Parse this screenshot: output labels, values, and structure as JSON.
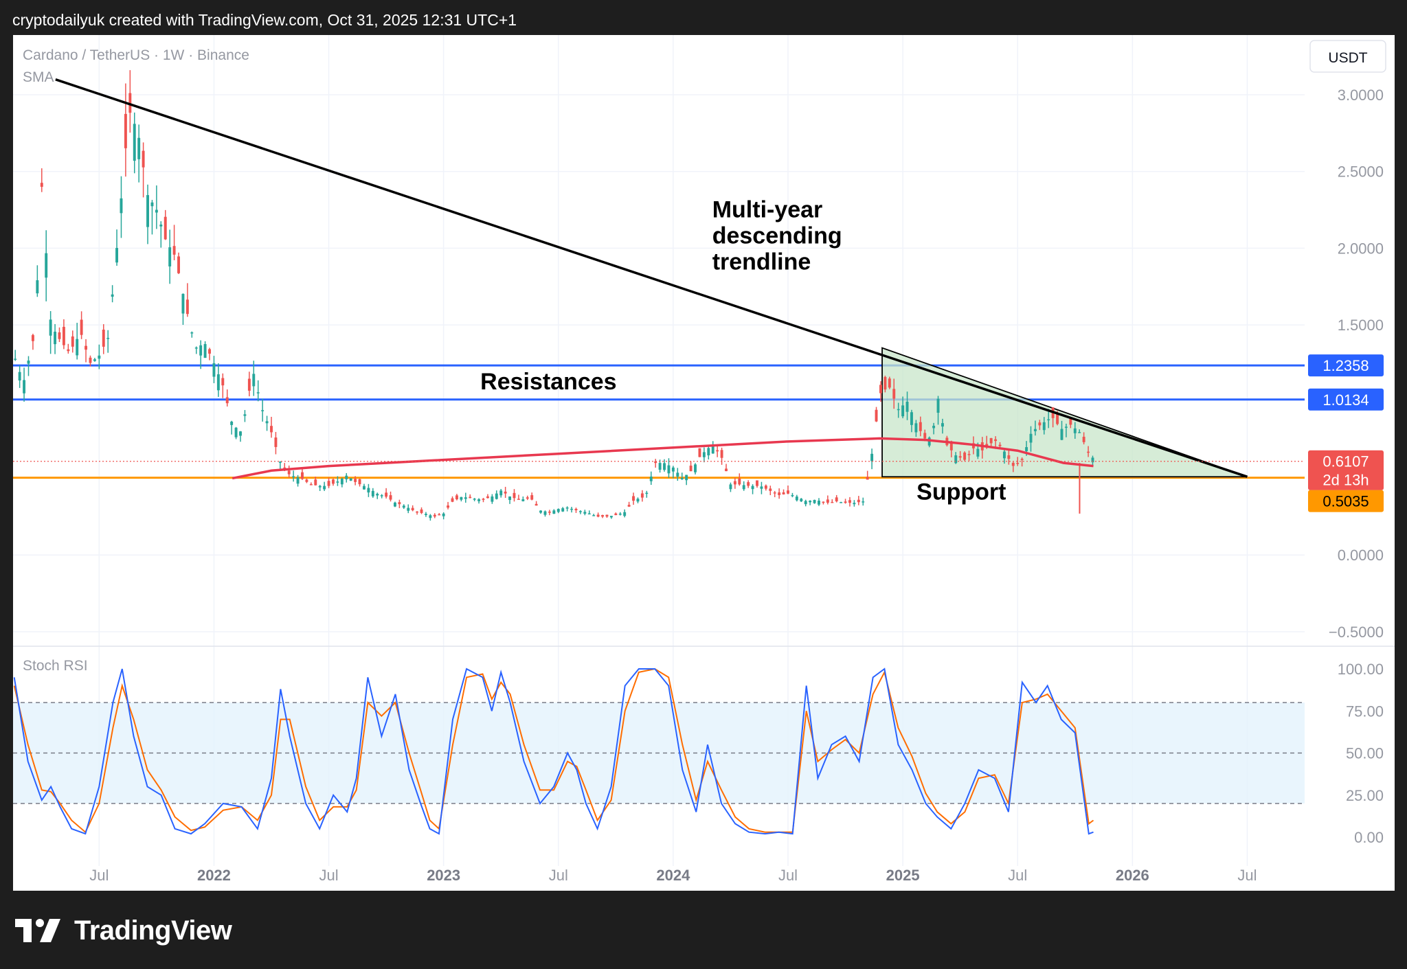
{
  "header": {
    "text": "cryptodailyuk created with TradingView.com, Oct 31, 2025 12:31 UTC+1"
  },
  "footer": {
    "brand": "TradingView"
  },
  "colors": {
    "bullish": "#26a69a",
    "bearish": "#ef5350",
    "sma": "#e8384f",
    "resistance": "#2962ff",
    "support": "#ff9800",
    "trendline": "#000000",
    "stoch_k": "#2962ff",
    "stoch_d": "#ff6d00",
    "pattern_fill": "#c8e6c9",
    "stoch_band": "#e3f2fd"
  },
  "chart_data": {
    "type": "candlestick",
    "symbol_line": "Cardano / TetherUS · 1W · Binance",
    "indicator_label": "SMA",
    "currency_button": "USDT",
    "price_axis": {
      "ticks": [
        "3.0000",
        "2.5000",
        "2.0000",
        "1.5000",
        "0.0000",
        "−0.5000"
      ],
      "tick_values": [
        3.0,
        2.5,
        2.0,
        1.5,
        0.0,
        -0.5
      ],
      "ylim": [
        -0.55,
        3.3
      ]
    },
    "time_axis": {
      "labels": [
        {
          "text": "Jul",
          "t": 2021.5,
          "bold": false
        },
        {
          "text": "2022",
          "t": 2022.0,
          "bold": true
        },
        {
          "text": "Jul",
          "t": 2022.5,
          "bold": false
        },
        {
          "text": "2023",
          "t": 2023.0,
          "bold": true
        },
        {
          "text": "Jul",
          "t": 2023.5,
          "bold": false
        },
        {
          "text": "2024",
          "t": 2024.0,
          "bold": true
        },
        {
          "text": "Jul",
          "t": 2024.5,
          "bold": false
        },
        {
          "text": "2025",
          "t": 2025.0,
          "bold": true
        },
        {
          "text": "Jul",
          "t": 2025.5,
          "bold": false
        },
        {
          "text": "2026",
          "t": 2026.0,
          "bold": true
        },
        {
          "text": "Jul",
          "t": 2026.5,
          "bold": false
        }
      ],
      "range": [
        2021.125,
        2026.75
      ]
    },
    "price_series": [
      [
        2021.13,
        1.3
      ],
      [
        2021.17,
        1.12
      ],
      [
        2021.22,
        1.45
      ],
      [
        2021.25,
        2.4
      ],
      [
        2021.29,
        1.5
      ],
      [
        2021.33,
        1.4
      ],
      [
        2021.37,
        1.32
      ],
      [
        2021.42,
        1.45
      ],
      [
        2021.46,
        1.25
      ],
      [
        2021.5,
        1.3
      ],
      [
        2021.54,
        1.42
      ],
      [
        2021.58,
        2.05
      ],
      [
        2021.63,
        2.9
      ],
      [
        2021.67,
        2.75
      ],
      [
        2021.71,
        2.35
      ],
      [
        2021.75,
        2.25
      ],
      [
        2021.79,
        2.05
      ],
      [
        2021.83,
        1.95
      ],
      [
        2021.88,
        1.6
      ],
      [
        2021.92,
        1.35
      ],
      [
        2021.96,
        1.38
      ],
      [
        2022.0,
        1.25
      ],
      [
        2022.04,
        1.1
      ],
      [
        2022.08,
        0.85
      ],
      [
        2022.12,
        0.8
      ],
      [
        2022.17,
        1.2
      ],
      [
        2022.21,
        0.95
      ],
      [
        2022.25,
        0.8
      ],
      [
        2022.29,
        0.6
      ],
      [
        2022.33,
        0.52
      ],
      [
        2022.38,
        0.5
      ],
      [
        2022.42,
        0.46
      ],
      [
        2022.46,
        0.45
      ],
      [
        2022.5,
        0.45
      ],
      [
        2022.54,
        0.48
      ],
      [
        2022.58,
        0.52
      ],
      [
        2022.62,
        0.47
      ],
      [
        2022.67,
        0.44
      ],
      [
        2022.71,
        0.4
      ],
      [
        2022.75,
        0.38
      ],
      [
        2022.79,
        0.34
      ],
      [
        2022.83,
        0.32
      ],
      [
        2022.88,
        0.28
      ],
      [
        2022.92,
        0.27
      ],
      [
        2022.96,
        0.25
      ],
      [
        2023.0,
        0.27
      ],
      [
        2023.04,
        0.35
      ],
      [
        2023.08,
        0.38
      ],
      [
        2023.12,
        0.37
      ],
      [
        2023.17,
        0.36
      ],
      [
        2023.21,
        0.38
      ],
      [
        2023.25,
        0.42
      ],
      [
        2023.29,
        0.38
      ],
      [
        2023.33,
        0.36
      ],
      [
        2023.38,
        0.37
      ],
      [
        2023.42,
        0.29
      ],
      [
        2023.46,
        0.28
      ],
      [
        2023.5,
        0.3
      ],
      [
        2023.54,
        0.31
      ],
      [
        2023.58,
        0.29
      ],
      [
        2023.62,
        0.28
      ],
      [
        2023.67,
        0.25
      ],
      [
        2023.71,
        0.25
      ],
      [
        2023.75,
        0.26
      ],
      [
        2023.79,
        0.28
      ],
      [
        2023.83,
        0.36
      ],
      [
        2023.88,
        0.38
      ],
      [
        2023.92,
        0.6
      ],
      [
        2023.96,
        0.6
      ],
      [
        2024.0,
        0.57
      ],
      [
        2024.04,
        0.5
      ],
      [
        2024.08,
        0.55
      ],
      [
        2024.12,
        0.65
      ],
      [
        2024.17,
        0.72
      ],
      [
        2024.21,
        0.64
      ],
      [
        2024.25,
        0.46
      ],
      [
        2024.29,
        0.46
      ],
      [
        2024.33,
        0.45
      ],
      [
        2024.38,
        0.45
      ],
      [
        2024.42,
        0.42
      ],
      [
        2024.46,
        0.39
      ],
      [
        2024.5,
        0.4
      ],
      [
        2024.54,
        0.38
      ],
      [
        2024.58,
        0.35
      ],
      [
        2024.62,
        0.36
      ],
      [
        2024.67,
        0.34
      ],
      [
        2024.71,
        0.35
      ],
      [
        2024.75,
        0.34
      ],
      [
        2024.79,
        0.34
      ],
      [
        2024.83,
        0.35
      ],
      [
        2024.87,
        0.7
      ],
      [
        2024.9,
        1.05
      ],
      [
        2024.94,
        1.1
      ],
      [
        2024.98,
        0.95
      ],
      [
        2025.02,
        1.0
      ],
      [
        2025.06,
        0.85
      ],
      [
        2025.1,
        0.75
      ],
      [
        2025.13,
        0.78
      ],
      [
        2025.15,
        1.05
      ],
      [
        2025.19,
        0.72
      ],
      [
        2025.23,
        0.65
      ],
      [
        2025.27,
        0.62
      ],
      [
        2025.31,
        0.7
      ],
      [
        2025.35,
        0.68
      ],
      [
        2025.4,
        0.75
      ],
      [
        2025.44,
        0.68
      ],
      [
        2025.48,
        0.58
      ],
      [
        2025.52,
        0.62
      ],
      [
        2025.56,
        0.8
      ],
      [
        2025.6,
        0.85
      ],
      [
        2025.65,
        0.9
      ],
      [
        2025.69,
        0.82
      ],
      [
        2025.73,
        0.85
      ],
      [
        2025.77,
        0.8
      ],
      [
        2025.81,
        0.66
      ],
      [
        2025.83,
        0.63
      ]
    ],
    "sma_series": [
      [
        2022.08,
        0.5
      ],
      [
        2022.25,
        0.55
      ],
      [
        2022.5,
        0.58
      ],
      [
        2023.0,
        0.62
      ],
      [
        2023.5,
        0.66
      ],
      [
        2024.0,
        0.7
      ],
      [
        2024.5,
        0.74
      ],
      [
        2024.9,
        0.76
      ],
      [
        2025.1,
        0.75
      ],
      [
        2025.3,
        0.72
      ],
      [
        2025.5,
        0.68
      ],
      [
        2025.7,
        0.6
      ],
      [
        2025.83,
        0.58
      ]
    ],
    "levels": [
      {
        "label": "1.2358",
        "value": 1.2358,
        "color": "#2962ff"
      },
      {
        "label": "1.0134",
        "value": 1.0134,
        "color": "#2962ff"
      },
      {
        "label": "0.5035",
        "value": 0.5035,
        "color": "#ff9800"
      }
    ],
    "current_price": {
      "label": "0.6107",
      "value": 0.6107,
      "countdown": "2d 13h"
    },
    "trendline": {
      "from": [
        2021.31,
        3.1
      ],
      "to": [
        2026.5,
        0.51
      ]
    },
    "triangle": {
      "apex_top": [
        2024.91,
        1.35
      ],
      "base_start": [
        2024.91,
        0.51
      ],
      "base_end": [
        2026.5,
        0.51
      ]
    },
    "annotations": [
      {
        "key": "trend",
        "lines": [
          "Multi-year",
          "descending",
          "trendline"
        ]
      },
      {
        "key": "res",
        "lines": [
          "Resistances"
        ]
      },
      {
        "key": "sup",
        "lines": [
          "Support"
        ]
      }
    ],
    "stoch": {
      "label": "Stoch RSI",
      "ticks": [
        "100.00",
        "75.00",
        "50.00",
        "25.00",
        "0.00"
      ],
      "tick_values": [
        100,
        75,
        50,
        25,
        0
      ],
      "bands": [
        80,
        50,
        20
      ],
      "k": [
        [
          2021.13,
          95
        ],
        [
          2021.19,
          45
        ],
        [
          2021.25,
          22
        ],
        [
          2021.29,
          30
        ],
        [
          2021.33,
          18
        ],
        [
          2021.38,
          5
        ],
        [
          2021.44,
          2
        ],
        [
          2021.5,
          30
        ],
        [
          2021.56,
          80
        ],
        [
          2021.6,
          100
        ],
        [
          2021.65,
          60
        ],
        [
          2021.71,
          30
        ],
        [
          2021.77,
          25
        ],
        [
          2021.83,
          5
        ],
        [
          2021.9,
          2
        ],
        [
          2021.96,
          8
        ],
        [
          2022.04,
          20
        ],
        [
          2022.12,
          18
        ],
        [
          2022.19,
          5
        ],
        [
          2022.25,
          35
        ],
        [
          2022.29,
          88
        ],
        [
          2022.33,
          60
        ],
        [
          2022.4,
          20
        ],
        [
          2022.46,
          5
        ],
        [
          2022.52,
          25
        ],
        [
          2022.58,
          15
        ],
        [
          2022.62,
          35
        ],
        [
          2022.67,
          95
        ],
        [
          2022.73,
          60
        ],
        [
          2022.79,
          85
        ],
        [
          2022.85,
          40
        ],
        [
          2022.9,
          20
        ],
        [
          2022.94,
          5
        ],
        [
          2022.98,
          2
        ],
        [
          2023.04,
          70
        ],
        [
          2023.1,
          100
        ],
        [
          2023.17,
          95
        ],
        [
          2023.21,
          75
        ],
        [
          2023.25,
          98
        ],
        [
          2023.29,
          80
        ],
        [
          2023.35,
          45
        ],
        [
          2023.42,
          20
        ],
        [
          2023.48,
          30
        ],
        [
          2023.54,
          50
        ],
        [
          2023.58,
          40
        ],
        [
          2023.62,
          20
        ],
        [
          2023.67,
          5
        ],
        [
          2023.73,
          30
        ],
        [
          2023.79,
          90
        ],
        [
          2023.85,
          100
        ],
        [
          2023.92,
          100
        ],
        [
          2023.98,
          90
        ],
        [
          2024.04,
          40
        ],
        [
          2024.1,
          15
        ],
        [
          2024.15,
          55
        ],
        [
          2024.21,
          20
        ],
        [
          2024.27,
          8
        ],
        [
          2024.33,
          3
        ],
        [
          2024.4,
          2
        ],
        [
          2024.46,
          3
        ],
        [
          2024.52,
          2
        ],
        [
          2024.58,
          90
        ],
        [
          2024.63,
          35
        ],
        [
          2024.69,
          55
        ],
        [
          2024.75,
          60
        ],
        [
          2024.81,
          45
        ],
        [
          2024.87,
          95
        ],
        [
          2024.92,
          100
        ],
        [
          2024.98,
          55
        ],
        [
          2025.04,
          40
        ],
        [
          2025.1,
          20
        ],
        [
          2025.15,
          12
        ],
        [
          2025.21,
          5
        ],
        [
          2025.27,
          20
        ],
        [
          2025.33,
          40
        ],
        [
          2025.4,
          35
        ],
        [
          2025.46,
          15
        ],
        [
          2025.52,
          92
        ],
        [
          2025.58,
          80
        ],
        [
          2025.63,
          90
        ],
        [
          2025.69,
          70
        ],
        [
          2025.75,
          62
        ],
        [
          2025.81,
          2
        ],
        [
          2025.83,
          3
        ]
      ],
      "d": [
        [
          2021.13,
          90
        ],
        [
          2021.19,
          55
        ],
        [
          2021.25,
          28
        ],
        [
          2021.29,
          27
        ],
        [
          2021.33,
          20
        ],
        [
          2021.38,
          10
        ],
        [
          2021.44,
          3
        ],
        [
          2021.5,
          20
        ],
        [
          2021.56,
          65
        ],
        [
          2021.6,
          90
        ],
        [
          2021.65,
          70
        ],
        [
          2021.71,
          40
        ],
        [
          2021.77,
          28
        ],
        [
          2021.83,
          12
        ],
        [
          2021.9,
          4
        ],
        [
          2021.96,
          6
        ],
        [
          2022.04,
          16
        ],
        [
          2022.12,
          18
        ],
        [
          2022.19,
          10
        ],
        [
          2022.25,
          25
        ],
        [
          2022.29,
          70
        ],
        [
          2022.33,
          70
        ],
        [
          2022.4,
          30
        ],
        [
          2022.46,
          10
        ],
        [
          2022.52,
          18
        ],
        [
          2022.58,
          18
        ],
        [
          2022.62,
          28
        ],
        [
          2022.67,
          80
        ],
        [
          2022.73,
          72
        ],
        [
          2022.79,
          80
        ],
        [
          2022.85,
          50
        ],
        [
          2022.9,
          28
        ],
        [
          2022.94,
          10
        ],
        [
          2022.98,
          5
        ],
        [
          2023.04,
          55
        ],
        [
          2023.1,
          95
        ],
        [
          2023.17,
          97
        ],
        [
          2023.21,
          82
        ],
        [
          2023.25,
          92
        ],
        [
          2023.29,
          85
        ],
        [
          2023.35,
          55
        ],
        [
          2023.42,
          28
        ],
        [
          2023.48,
          28
        ],
        [
          2023.54,
          45
        ],
        [
          2023.58,
          42
        ],
        [
          2023.62,
          28
        ],
        [
          2023.67,
          10
        ],
        [
          2023.73,
          22
        ],
        [
          2023.79,
          75
        ],
        [
          2023.85,
          98
        ],
        [
          2023.92,
          100
        ],
        [
          2023.98,
          95
        ],
        [
          2024.04,
          55
        ],
        [
          2024.1,
          22
        ],
        [
          2024.15,
          45
        ],
        [
          2024.21,
          28
        ],
        [
          2024.27,
          12
        ],
        [
          2024.33,
          5
        ],
        [
          2024.4,
          3
        ],
        [
          2024.46,
          3
        ],
        [
          2024.52,
          3
        ],
        [
          2024.58,
          75
        ],
        [
          2024.63,
          45
        ],
        [
          2024.69,
          52
        ],
        [
          2024.75,
          58
        ],
        [
          2024.81,
          50
        ],
        [
          2024.87,
          85
        ],
        [
          2024.92,
          98
        ],
        [
          2024.98,
          65
        ],
        [
          2025.04,
          48
        ],
        [
          2025.1,
          26
        ],
        [
          2025.15,
          15
        ],
        [
          2025.21,
          8
        ],
        [
          2025.27,
          15
        ],
        [
          2025.33,
          35
        ],
        [
          2025.4,
          37
        ],
        [
          2025.46,
          20
        ],
        [
          2025.52,
          80
        ],
        [
          2025.58,
          82
        ],
        [
          2025.63,
          85
        ],
        [
          2025.69,
          75
        ],
        [
          2025.75,
          65
        ],
        [
          2025.81,
          8
        ],
        [
          2025.83,
          10
        ]
      ]
    }
  }
}
